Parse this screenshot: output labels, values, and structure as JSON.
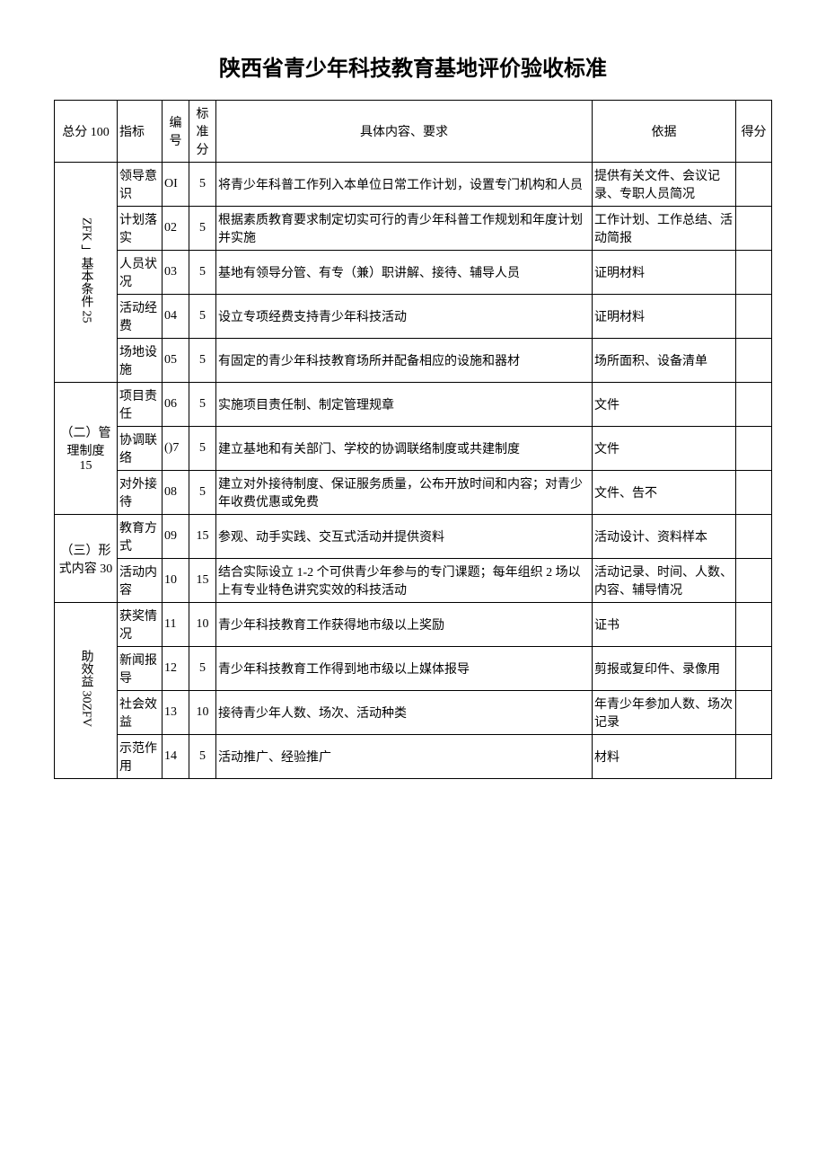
{
  "title": "陕西省青少年科技教育基地评价验收标准",
  "headers": {
    "total": "总分 100",
    "indicator": "指标",
    "num": "编号",
    "stdscore": "标准分",
    "content": "具体内容、要求",
    "basis": "依据",
    "score": "得分"
  },
  "groups": [
    {
      "label": "ZFK 」基本条件 25",
      "rows": [
        {
          "ind": "领导意识",
          "num": "OI",
          "score": "5",
          "content": "将青少年科普工作列入本单位日常工作计划，设置专门机构和人员",
          "basis": "提供有关文件、会议记录、专职人员简况"
        },
        {
          "ind": "计划落实",
          "num": "02",
          "score": "5",
          "content": "根据素质教育要求制定切实可行的青少年科普工作规划和年度计划并实施",
          "basis": "工作计划、工作总结、活动简报"
        },
        {
          "ind": "人员状况",
          "num": "03",
          "score": "5",
          "content": "基地有领导分管、有专（兼）职讲解、接待、辅导人员",
          "basis": "证明材料"
        },
        {
          "ind": "活动经费",
          "num": "04",
          "score": "5",
          "content": "设立专项经费支持青少年科技活动",
          "basis": "证明材料"
        },
        {
          "ind": "场地设施",
          "num": "05",
          "score": "5",
          "content": "有固定的青少年科技教育场所并配备相应的设施和器材",
          "basis": "场所面积、设备清单"
        }
      ]
    },
    {
      "label": "（二）管理制度\n15",
      "rows": [
        {
          "ind": "项目责任",
          "num": "06",
          "score": "5",
          "content": "实施项目责任制、制定管理规章",
          "basis": "文件"
        },
        {
          "ind": "协调联络",
          "num": "()7",
          "score": "5",
          "content": "建立基地和有关部门、学校的协调联络制度或共建制度",
          "basis": "文件"
        },
        {
          "ind": "对外接待",
          "num": "08",
          "score": "5",
          "content": "建立对外接待制度、保证服务质量，公布开放时间和内容；对青少年收费优惠或免费",
          "basis": "文件、告不"
        }
      ]
    },
    {
      "label": "（三）形式内容 30",
      "rows": [
        {
          "ind": "教育方式",
          "num": "09",
          "score": "15",
          "content": "参观、动手实践、交互式活动并提供资料",
          "basis": "活动设计、资料样本"
        },
        {
          "ind": "活动内容",
          "num": "10",
          "score": "15",
          "content": "结合实际设立 1-2 个可供青少年参与的专门课题；每年组织 2 场以上有专业特色讲究实效的科技活动",
          "basis": "活动记录、时间、人数、内容、辅导情况"
        }
      ]
    },
    {
      "label": "助效益 30ZFV",
      "rows": [
        {
          "ind": "获奖情况",
          "num": "11",
          "score": "10",
          "content": "青少年科技教育工作获得地市级以上奖励",
          "basis": "证书"
        },
        {
          "ind": "新闻报导",
          "num": "12",
          "score": "5",
          "content": "青少年科技教育工作得到地市级以上媒体报导",
          "basis": "剪报或复印件、录像用"
        },
        {
          "ind": "社会效益",
          "num": "13",
          "score": "10",
          "content": "接待青少年人数、场次、活动种类",
          "basis": "年青少年参加人数、场次记录"
        },
        {
          "ind": "示范作用",
          "num": "14",
          "score": "5",
          "content": "活动推广、经验推广",
          "basis": "材料"
        }
      ]
    }
  ]
}
